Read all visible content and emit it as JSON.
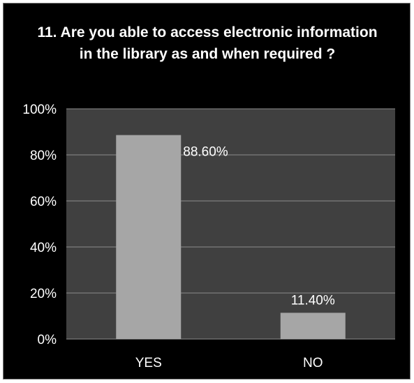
{
  "chart_data": {
    "type": "bar",
    "title": "11. Are you able to access electronic information in the library as and when required ?",
    "categories": [
      "YES",
      "NO"
    ],
    "values": [
      88.6,
      11.4
    ],
    "data_labels": [
      "88.60%",
      "11.40%"
    ],
    "y_ticks": [
      "0%",
      "20%",
      "40%",
      "60%",
      "80%",
      "100%"
    ],
    "ylim": [
      0,
      100
    ],
    "grid": true,
    "colors": {
      "background": "#000000",
      "plot_area": "#404040",
      "bar": "#a6a6a6",
      "gridline": "#8c8c8c",
      "text": "#ffffff"
    }
  }
}
